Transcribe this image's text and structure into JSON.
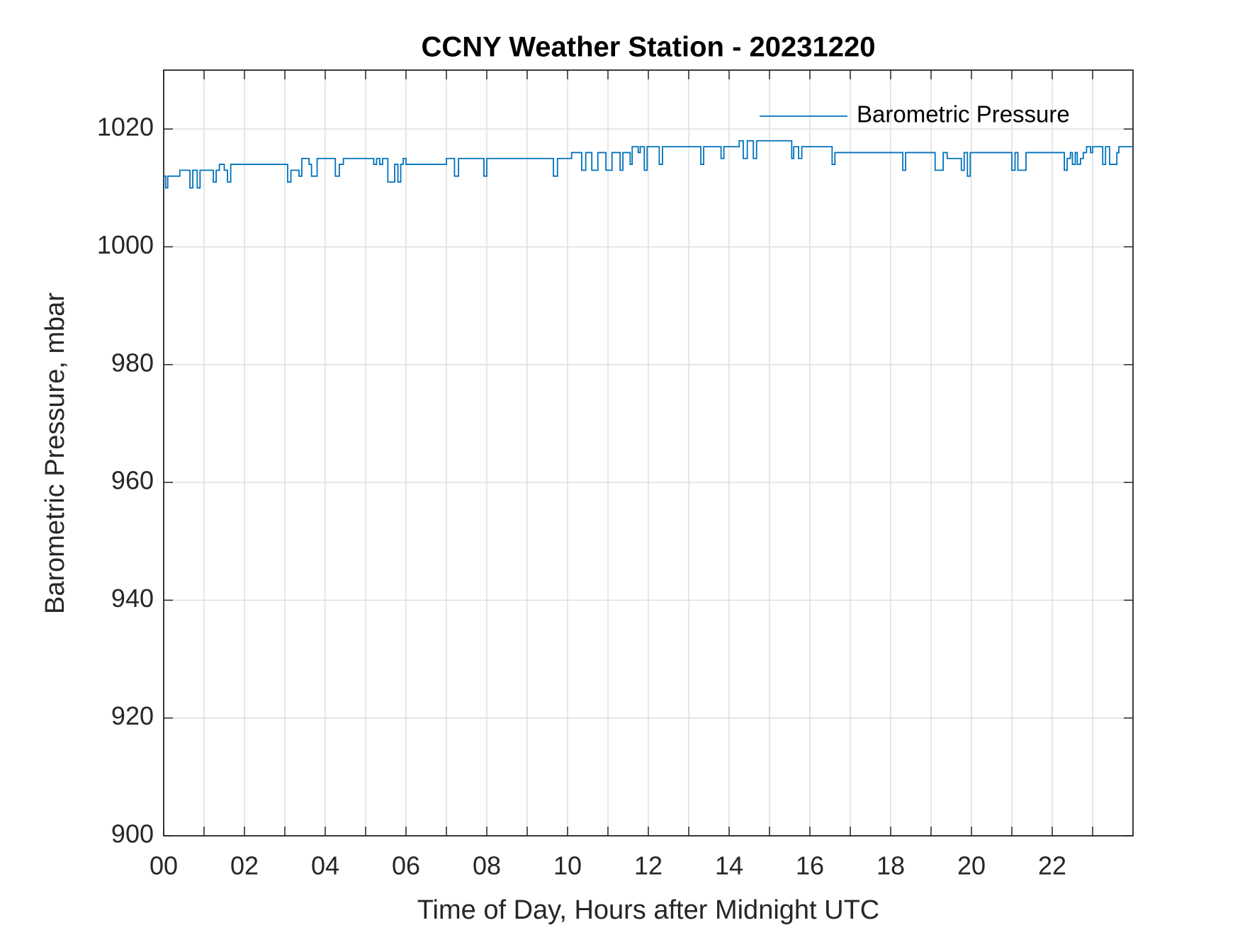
{
  "chart_data": {
    "type": "line",
    "step": true,
    "title": "CCNY Weather Station - 20231220",
    "xlabel": "Time of Day, Hours after Midnight UTC",
    "ylabel": "Barometric Pressure, mbar",
    "xlim": [
      0,
      24
    ],
    "ylim": [
      900,
      1030
    ],
    "xticks": [
      {
        "value": 0,
        "label": "00"
      },
      {
        "value": 2,
        "label": "02"
      },
      {
        "value": 4,
        "label": "04"
      },
      {
        "value": 6,
        "label": "06"
      },
      {
        "value": 8,
        "label": "08"
      },
      {
        "value": 10,
        "label": "10"
      },
      {
        "value": 12,
        "label": "12"
      },
      {
        "value": 14,
        "label": "14"
      },
      {
        "value": 16,
        "label": "16"
      },
      {
        "value": 18,
        "label": "18"
      },
      {
        "value": 20,
        "label": "20"
      },
      {
        "value": 22,
        "label": "22"
      }
    ],
    "xminorticks": [
      1,
      3,
      5,
      7,
      9,
      11,
      13,
      15,
      17,
      19,
      21,
      23
    ],
    "yticks": [
      900,
      920,
      940,
      960,
      980,
      1000,
      1020
    ],
    "grid": true,
    "legend": "upper right",
    "x": [
      0,
      0.05,
      0.1,
      0.4,
      0.65,
      0.72,
      0.83,
      0.9,
      1.23,
      1.3,
      1.38,
      1.5,
      1.58,
      1.66,
      3.07,
      3.15,
      3.35,
      3.42,
      3.6,
      3.66,
      3.8,
      4.25,
      4.35,
      4.45,
      5.2,
      5.27,
      5.35,
      5.42,
      5.55,
      5.72,
      5.8,
      5.87,
      5.93,
      6.0,
      7.0,
      7.2,
      7.3,
      7.93,
      8.0,
      9.65,
      9.75,
      10.1,
      10.35,
      10.45,
      10.6,
      10.75,
      10.95,
      11.1,
      11.3,
      11.37,
      11.55,
      11.6,
      11.75,
      11.8,
      11.9,
      11.97,
      12.27,
      12.35,
      13.3,
      13.37,
      13.8,
      13.87,
      14.25,
      14.35,
      14.45,
      14.6,
      14.68,
      15.55,
      15.6,
      15.72,
      15.8,
      16.55,
      16.62,
      18.3,
      18.37,
      19.1,
      19.3,
      19.4,
      19.75,
      19.82,
      19.9,
      19.97,
      21.0,
      21.08,
      21.15,
      21.35,
      22.3,
      22.37,
      22.45,
      22.5,
      22.57,
      22.62,
      22.7,
      22.77,
      22.85,
      22.95,
      23.0,
      23.25,
      23.32,
      23.42,
      23.6,
      23.65,
      24
    ],
    "series": [
      {
        "name": "Barometric Pressure",
        "color": "#0072bd",
        "values": [
          1012,
          1010,
          1012,
          1013,
          1010,
          1013,
          1010,
          1013,
          1011,
          1013,
          1014,
          1013,
          1011,
          1014,
          1011,
          1013,
          1012,
          1015,
          1014,
          1012,
          1015,
          1012,
          1014,
          1015,
          1014,
          1015,
          1014,
          1015,
          1011,
          1014,
          1011,
          1014,
          1015,
          1014,
          1015,
          1012,
          1015,
          1012,
          1015,
          1012,
          1015,
          1016,
          1013,
          1016,
          1013,
          1016,
          1013,
          1016,
          1013,
          1016,
          1014,
          1017,
          1016,
          1017,
          1013,
          1017,
          1014,
          1017,
          1014,
          1017,
          1015,
          1017,
          1018,
          1015,
          1018,
          1015,
          1018,
          1015,
          1017,
          1015,
          1017,
          1014,
          1016,
          1013,
          1016,
          1013,
          1016,
          1015,
          1013,
          1016,
          1012,
          1016,
          1013,
          1016,
          1013,
          1016,
          1013,
          1015,
          1016,
          1014,
          1016,
          1014,
          1015,
          1016,
          1017,
          1016,
          1017,
          1014,
          1017,
          1014,
          1016,
          1017,
          1017
        ]
      }
    ]
  }
}
